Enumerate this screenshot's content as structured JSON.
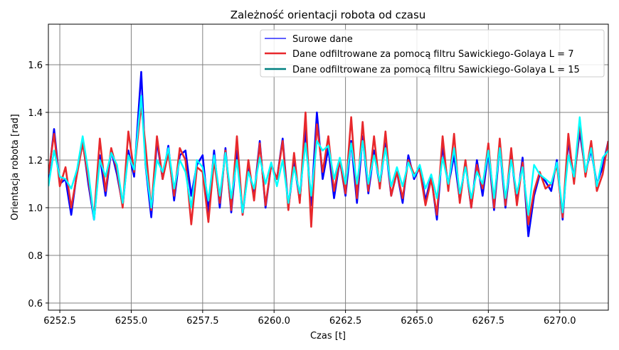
{
  "chart_data": {
    "type": "line",
    "title": "Zależność orientacji robota od czasu",
    "xlabel": "Czas [t]",
    "ylabel": "Orientacja robota [rad]",
    "xlim": [
      6252.1,
      6271.7
    ],
    "ylim": [
      0.57,
      1.77
    ],
    "xticks": [
      6252.5,
      6255.0,
      6257.5,
      6260.0,
      6262.5,
      6265.0,
      6267.5,
      6270.0
    ],
    "xtick_labels": [
      "6252.5",
      "6255.0",
      "6257.5",
      "6260.0",
      "6262.5",
      "6265.0",
      "6267.5",
      "6270.0"
    ],
    "yticks": [
      0.6,
      0.8,
      1.0,
      1.2,
      1.4,
      1.6
    ],
    "ytick_labels": [
      "0.6",
      "0.8",
      "1.0",
      "1.2",
      "1.4",
      "1.6"
    ],
    "grid": true,
    "grid_color": "#808080",
    "legend_position": "top-right",
    "series": [
      {
        "name": "Surowe dane",
        "color": "#0000ff",
        "x": [
          6252.1,
          6252.3,
          6252.5,
          6252.7,
          6252.9,
          6253.1,
          6253.3,
          6253.5,
          6253.7,
          6253.9,
          6254.1,
          6254.3,
          6254.5,
          6254.7,
          6254.9,
          6255.1,
          6255.35,
          6255.5,
          6255.7,
          6255.9,
          6256.1,
          6256.3,
          6256.5,
          6256.7,
          6256.9,
          6257.1,
          6257.3,
          6257.5,
          6257.7,
          6257.9,
          6258.1,
          6258.3,
          6258.5,
          6258.7,
          6258.9,
          6259.1,
          6259.3,
          6259.5,
          6259.7,
          6259.9,
          6260.1,
          6260.3,
          6260.5,
          6260.7,
          6260.9,
          6261.1,
          6261.3,
          6261.5,
          6261.7,
          6261.9,
          6262.1,
          6262.3,
          6262.5,
          6262.7,
          6262.9,
          6263.1,
          6263.3,
          6263.5,
          6263.7,
          6263.9,
          6264.1,
          6264.3,
          6264.5,
          6264.7,
          6264.9,
          6265.1,
          6265.3,
          6265.5,
          6265.7,
          6265.9,
          6266.1,
          6266.3,
          6266.5,
          6266.7,
          6266.9,
          6267.1,
          6267.3,
          6267.5,
          6267.7,
          6267.9,
          6268.1,
          6268.3,
          6268.5,
          6268.7,
          6268.9,
          6269.1,
          6269.3,
          6269.5,
          6269.7,
          6269.9,
          6270.1,
          6270.3,
          6270.5,
          6270.7,
          6270.9,
          6271.1,
          6271.3,
          6271.5,
          6271.7
        ],
        "y": [
          1.12,
          1.33,
          1.1,
          1.12,
          0.97,
          1.15,
          1.28,
          1.1,
          0.95,
          1.22,
          1.05,
          1.24,
          1.14,
          1.01,
          1.24,
          1.13,
          1.57,
          1.18,
          0.96,
          1.28,
          1.12,
          1.26,
          1.03,
          1.22,
          1.24,
          1.05,
          1.18,
          1.22,
          0.98,
          1.24,
          1.0,
          1.25,
          0.98,
          1.24,
          0.97,
          1.17,
          1.05,
          1.28,
          1.0,
          1.18,
          1.12,
          1.29,
          1.0,
          1.19,
          1.03,
          1.33,
          1.01,
          1.4,
          1.12,
          1.25,
          1.04,
          1.2,
          1.05,
          1.28,
          1.02,
          1.3,
          1.06,
          1.24,
          1.09,
          1.27,
          1.05,
          1.15,
          1.02,
          1.22,
          1.12,
          1.17,
          1.03,
          1.13,
          0.95,
          1.26,
          1.09,
          1.22,
          1.03,
          1.19,
          1.0,
          1.2,
          1.05,
          1.24,
          0.99,
          1.26,
          1.0,
          1.22,
          1.02,
          1.21,
          0.88,
          1.05,
          1.14,
          1.11,
          1.07,
          1.2,
          0.95,
          1.28,
          1.12,
          1.32,
          1.15,
          1.24,
          1.1,
          1.17,
          1.28
        ]
      },
      {
        "name": "Dane odfiltrowane za pomocą filtru Sawickiego-Golaya L = 7",
        "color": "#e8282c",
        "x": [
          6252.1,
          6252.3,
          6252.5,
          6252.7,
          6252.9,
          6253.1,
          6253.3,
          6253.5,
          6253.7,
          6253.9,
          6254.1,
          6254.3,
          6254.5,
          6254.7,
          6254.9,
          6255.1,
          6255.35,
          6255.5,
          6255.7,
          6255.9,
          6256.1,
          6256.3,
          6256.5,
          6256.7,
          6256.9,
          6257.1,
          6257.3,
          6257.5,
          6257.7,
          6257.9,
          6258.1,
          6258.3,
          6258.5,
          6258.7,
          6258.9,
          6259.1,
          6259.3,
          6259.5,
          6259.7,
          6259.9,
          6260.1,
          6260.3,
          6260.5,
          6260.7,
          6260.9,
          6261.1,
          6261.3,
          6261.5,
          6261.7,
          6261.9,
          6262.1,
          6262.3,
          6262.5,
          6262.7,
          6262.9,
          6263.1,
          6263.3,
          6263.5,
          6263.7,
          6263.9,
          6264.1,
          6264.3,
          6264.5,
          6264.7,
          6264.9,
          6265.1,
          6265.3,
          6265.5,
          6265.7,
          6265.9,
          6266.1,
          6266.3,
          6266.5,
          6266.7,
          6266.9,
          6267.1,
          6267.3,
          6267.5,
          6267.7,
          6267.9,
          6268.1,
          6268.3,
          6268.5,
          6268.7,
          6268.9,
          6269.1,
          6269.3,
          6269.5,
          6269.7,
          6269.9,
          6270.1,
          6270.3,
          6270.5,
          6270.7,
          6270.9,
          6271.1,
          6271.3,
          6271.5,
          6271.7
        ],
        "y": [
          1.14,
          1.31,
          1.09,
          1.17,
          1.0,
          1.14,
          1.27,
          1.12,
          0.96,
          1.29,
          1.07,
          1.25,
          1.16,
          1.0,
          1.32,
          1.15,
          1.43,
          1.26,
          0.99,
          1.3,
          1.12,
          1.23,
          1.05,
          1.25,
          1.2,
          0.93,
          1.17,
          1.15,
          0.94,
          1.2,
          1.02,
          1.24,
          0.99,
          1.3,
          0.97,
          1.2,
          1.03,
          1.27,
          1.01,
          1.18,
          1.12,
          1.28,
          0.99,
          1.23,
          1.02,
          1.4,
          0.92,
          1.35,
          1.15,
          1.3,
          1.07,
          1.2,
          1.06,
          1.38,
          1.04,
          1.36,
          1.07,
          1.3,
          1.08,
          1.32,
          1.05,
          1.15,
          1.04,
          1.2,
          1.14,
          1.16,
          1.01,
          1.12,
          0.97,
          1.3,
          1.07,
          1.31,
          1.02,
          1.2,
          1.0,
          1.18,
          1.08,
          1.27,
          1.0,
          1.29,
          1.01,
          1.25,
          1.01,
          1.19,
          0.93,
          1.07,
          1.15,
          1.08,
          1.1,
          1.18,
          0.96,
          1.31,
          1.1,
          1.36,
          1.13,
          1.28,
          1.07,
          1.14,
          1.28
        ]
      },
      {
        "name": "Dane odfiltrowane za pomocą filtru Sawickiego-Golaya L = 15",
        "color": "#00ffff",
        "x": [
          6252.1,
          6252.3,
          6252.5,
          6252.7,
          6252.9,
          6253.1,
          6253.3,
          6253.5,
          6253.7,
          6253.9,
          6254.1,
          6254.3,
          6254.5,
          6254.7,
          6254.9,
          6255.1,
          6255.35,
          6255.5,
          6255.7,
          6255.9,
          6256.1,
          6256.3,
          6256.5,
          6256.7,
          6256.9,
          6257.1,
          6257.3,
          6257.5,
          6257.7,
          6257.9,
          6258.1,
          6258.3,
          6258.5,
          6258.7,
          6258.9,
          6259.1,
          6259.3,
          6259.5,
          6259.7,
          6259.9,
          6260.1,
          6260.3,
          6260.5,
          6260.7,
          6260.9,
          6261.1,
          6261.3,
          6261.5,
          6261.7,
          6261.9,
          6262.1,
          6262.3,
          6262.5,
          6262.7,
          6262.9,
          6263.1,
          6263.3,
          6263.5,
          6263.7,
          6263.9,
          6264.1,
          6264.3,
          6264.5,
          6264.7,
          6264.9,
          6265.1,
          6265.3,
          6265.5,
          6265.7,
          6265.9,
          6266.1,
          6266.3,
          6266.5,
          6266.7,
          6266.9,
          6267.1,
          6267.3,
          6267.5,
          6267.7,
          6267.9,
          6268.1,
          6268.3,
          6268.5,
          6268.7,
          6268.9,
          6269.1,
          6269.3,
          6269.5,
          6269.7,
          6269.9,
          6270.1,
          6270.3,
          6270.5,
          6270.7,
          6270.9,
          6271.1,
          6271.3,
          6271.5,
          6271.7
        ],
        "y": [
          1.09,
          1.24,
          1.13,
          1.12,
          1.08,
          1.16,
          1.3,
          1.15,
          0.95,
          1.2,
          1.13,
          1.23,
          1.18,
          1.02,
          1.22,
          1.16,
          1.47,
          1.18,
          1.0,
          1.2,
          1.15,
          1.25,
          1.08,
          1.2,
          1.15,
          1.0,
          1.2,
          1.17,
          1.03,
          1.22,
          1.05,
          1.23,
          1.04,
          1.2,
          0.98,
          1.15,
          1.08,
          1.21,
          1.1,
          1.19,
          1.09,
          1.2,
          1.02,
          1.17,
          1.06,
          1.27,
          1.05,
          1.28,
          1.24,
          1.26,
          1.12,
          1.21,
          1.1,
          1.27,
          1.1,
          1.28,
          1.1,
          1.22,
          1.11,
          1.25,
          1.09,
          1.17,
          1.09,
          1.19,
          1.13,
          1.18,
          1.08,
          1.14,
          1.04,
          1.21,
          1.1,
          1.25,
          1.06,
          1.17,
          1.04,
          1.15,
          1.1,
          1.24,
          1.04,
          1.25,
          1.04,
          1.2,
          1.06,
          1.17,
          0.97,
          1.18,
          1.14,
          1.12,
          1.1,
          1.19,
          0.98,
          1.22,
          1.13,
          1.38,
          1.15,
          1.25,
          1.09,
          1.21,
          1.24
        ]
      }
    ]
  }
}
